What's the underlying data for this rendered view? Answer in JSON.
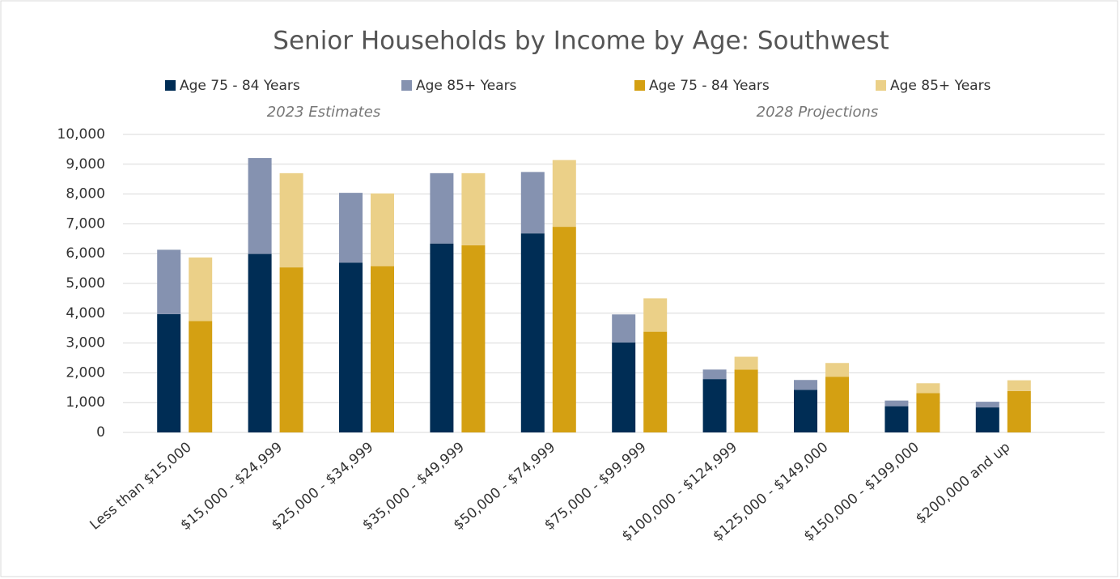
{
  "chart_data": {
    "type": "stacked-grouped-bar",
    "title": "Senior Households by Income by Age: Southwest",
    "legend_groups": [
      "2023 Estimates",
      "2028 Projections"
    ],
    "categories": [
      "Less than $15,000",
      "$15,000 - $24,999",
      "$25,000 - $34,999",
      "$35,000 - $49,999",
      "$50,000 - $74,999",
      "$75,000 - $99,999",
      "$100,000 - $124,999",
      "$125,000 - $149,000",
      "$150,000 - $199,000",
      "$200,000 and up"
    ],
    "series": [
      {
        "name": "Age 75 - 84 Years",
        "color": "#002d55",
        "stack": 0,
        "values": [
          3970,
          5990,
          5700,
          6340,
          6680,
          3020,
          1790,
          1430,
          880,
          840
        ]
      },
      {
        "name": "Age 85+ Years",
        "color": "#8592b0",
        "stack": 0,
        "values": [
          2160,
          3220,
          2340,
          2360,
          2060,
          940,
          320,
          330,
          190,
          190
        ]
      },
      {
        "name": "Age 75 - 84 Years",
        "color": "#d4a012",
        "stack": 1,
        "values": [
          3740,
          5540,
          5580,
          6280,
          6900,
          3380,
          2110,
          1870,
          1320,
          1390
        ]
      },
      {
        "name": "Age 85+ Years",
        "color": "#ebd088",
        "stack": 1,
        "values": [
          2130,
          3160,
          2440,
          2420,
          2240,
          1120,
          430,
          460,
          330,
          360
        ]
      }
    ],
    "ylim": [
      0,
      10000
    ],
    "yticks": [
      0,
      {
        "value": 1000,
        "label": "1,000"
      },
      {
        "value": 2000,
        "label": "2,000"
      },
      {
        "value": 3000,
        "label": "3,000"
      },
      {
        "value": 4000,
        "label": "4,000"
      },
      {
        "value": 5000,
        "label": "5,000"
      },
      {
        "value": 6000,
        "label": "6,000"
      },
      {
        "value": 7000,
        "label": "7,000"
      },
      {
        "value": 8000,
        "label": "8,000"
      },
      {
        "value": 9000,
        "label": "9,000"
      },
      {
        "value": 10000,
        "label": "10,000"
      }
    ],
    "grid": true
  }
}
